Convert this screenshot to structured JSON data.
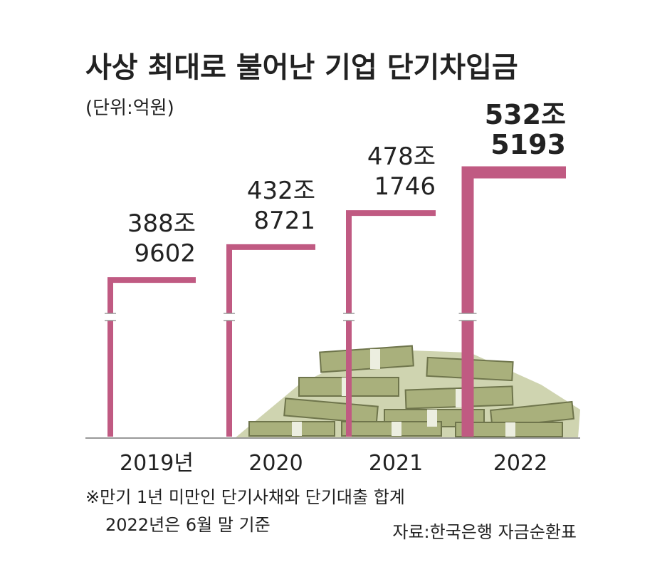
{
  "chart_data": {
    "type": "step-bar",
    "title": "사상 최대로 불어난 기업 단기차입금",
    "subtitle": "(단위:억원)",
    "categories": [
      "2019년",
      "2020",
      "2021",
      "2022"
    ],
    "values": [
      3889602,
      4328721,
      4781746,
      5325193
    ],
    "value_labels": [
      [
        "388조",
        "9602"
      ],
      [
        "432조",
        "8721"
      ],
      [
        "478조",
        "1746"
      ],
      [
        "532조",
        "5193"
      ]
    ],
    "color": "#c05a82",
    "ylim": [
      1800000,
      5800000
    ],
    "notes": [
      "※만기 1년 미만인 단기사채와 단기대출 합계",
      "2022년은 6월 말 기준"
    ],
    "source": "자료:한국은행 자금순환표"
  }
}
